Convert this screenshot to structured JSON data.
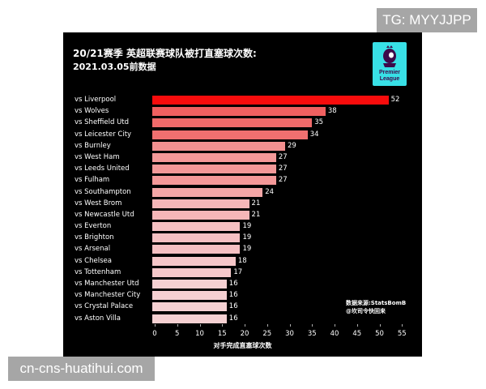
{
  "watermarks": {
    "top": "TG: MYYJJPP",
    "bottom": "cn-cns-huatihui.com"
  },
  "header": {
    "title": "20/21赛季 英超联赛球队被打直塞球次数:",
    "subtitle": "2021.03.05前数据"
  },
  "logo": {
    "line1": "Premier",
    "line2": "League",
    "icon": "premier-league-lion-icon",
    "bg_color": "#38e0e6"
  },
  "source": {
    "line1": "数据来源:StatsBomB",
    "line2": "@坎司令快回来"
  },
  "chart_data": {
    "type": "bar",
    "orientation": "horizontal",
    "title": "20/21赛季 英超联赛球队被打直塞球次数:",
    "subtitle": "2021.03.05前数据",
    "xlabel": "对手完成直塞球次数",
    "ylabel": "",
    "xlim": [
      0,
      55
    ],
    "xticks": [
      0,
      5,
      10,
      15,
      20,
      25,
      30,
      35,
      40,
      45,
      50,
      55
    ],
    "grid": false,
    "data_labels": true,
    "categories": [
      "vs Liverpool",
      "vs Wolves",
      "vs Sheffield Utd",
      "vs Leicester City",
      "vs Burnley",
      "vs West Ham",
      "vs Leeds United",
      "vs Fulham",
      "vs Southampton",
      "vs West Brom",
      "vs Newcastle Utd",
      "vs Everton",
      "vs Brighton",
      "vs Arsenal",
      "vs Chelsea",
      "vs Tottenham",
      "vs Manchester Utd",
      "vs Manchester City",
      "vs Crystal Palace",
      "vs Aston Villa"
    ],
    "values": [
      52,
      38,
      35,
      34,
      29,
      27,
      27,
      27,
      24,
      21,
      21,
      19,
      19,
      19,
      18,
      17,
      16,
      16,
      16,
      16
    ],
    "colors": [
      "#f80c0c",
      "#f06060",
      "#f06a6a",
      "#f07070",
      "#f29090",
      "#f49898",
      "#f49898",
      "#f49898",
      "#f4a6a6",
      "#f5b6b8",
      "#f5b6b8",
      "#f5c0c2",
      "#f5c0c2",
      "#f5c0c2",
      "#f5c6c8",
      "#f5c8ca",
      "#f5d0d2",
      "#f5d0d2",
      "#f5d0d2",
      "#f5d0d2"
    ],
    "source": "StatsBomB"
  }
}
